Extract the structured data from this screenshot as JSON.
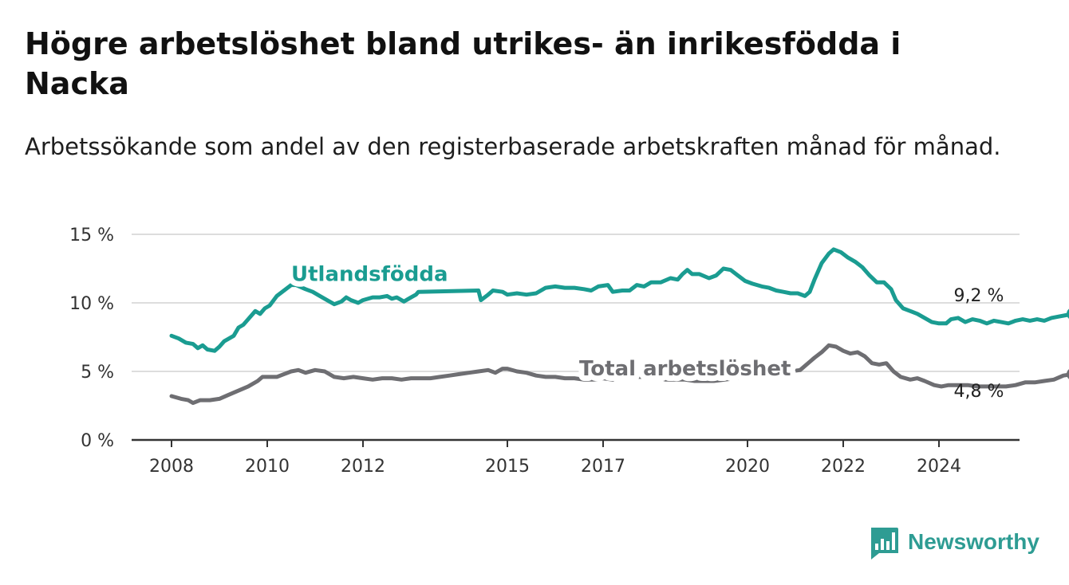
{
  "title": "Högre arbetslöshet bland utrikes- än inrikesfödda i Nacka",
  "subtitle": "Arbetssökande som andel av den registerbaserade arbetskraften månad för månad.",
  "brand": {
    "name": "Newsworthy",
    "icon": "bar-chart-badge-icon",
    "color": "#2e9c93"
  },
  "colors": {
    "foreign": "#1a9c91",
    "total": "#6e6e72",
    "grid": "#dddddd",
    "axis": "#333333"
  },
  "chart_data": {
    "type": "line",
    "title": "Högre arbetslöshet bland utrikes- än inrikesfödda i Nacka",
    "subtitle": "Arbetssökande som andel av den registerbaserade arbetskraften månad för månad.",
    "xlabel": "",
    "ylabel": "",
    "ylim": [
      0,
      15
    ],
    "y_ticks": [
      0,
      5,
      10,
      15
    ],
    "y_tick_labels": [
      "0 %",
      "5 %",
      "10 %",
      "15 %"
    ],
    "xlim": [
      2008,
      2025.7
    ],
    "x_ticks": [
      2008,
      2010,
      2012,
      2015,
      2017,
      2020,
      2022,
      2024
    ],
    "x_tick_labels": [
      "2008",
      "2010",
      "2012",
      "2015",
      "2017",
      "2020",
      "2022",
      "2024"
    ],
    "grid": true,
    "legend": "inline labels",
    "series": [
      {
        "name": "Utlandsfödda",
        "end_label": "9,2 %",
        "label_at": [
          2010.5,
          11.6
        ],
        "points": [
          [
            2008.0,
            7.6
          ],
          [
            2008.15,
            7.4
          ],
          [
            2008.3,
            7.1
          ],
          [
            2008.45,
            7.0
          ],
          [
            2008.55,
            6.7
          ],
          [
            2008.65,
            6.9
          ],
          [
            2008.75,
            6.6
          ],
          [
            2008.9,
            6.5
          ],
          [
            2009.0,
            6.8
          ],
          [
            2009.1,
            7.2
          ],
          [
            2009.3,
            7.6
          ],
          [
            2009.4,
            8.2
          ],
          [
            2009.5,
            8.4
          ],
          [
            2009.6,
            8.8
          ],
          [
            2009.75,
            9.4
          ],
          [
            2009.85,
            9.2
          ],
          [
            2009.95,
            9.6
          ],
          [
            2010.05,
            9.8
          ],
          [
            2010.2,
            10.5
          ],
          [
            2010.35,
            10.9
          ],
          [
            2010.5,
            11.3
          ],
          [
            2010.6,
            11.3
          ],
          [
            2010.8,
            11.0
          ],
          [
            2010.95,
            10.8
          ],
          [
            2011.1,
            10.5
          ],
          [
            2011.3,
            10.1
          ],
          [
            2011.4,
            9.9
          ],
          [
            2011.55,
            10.1
          ],
          [
            2011.65,
            10.4
          ],
          [
            2011.75,
            10.2
          ],
          [
            2011.9,
            10.0
          ],
          [
            2012.0,
            10.2
          ],
          [
            2012.2,
            10.4
          ],
          [
            2012.35,
            10.4
          ],
          [
            2012.5,
            10.5
          ],
          [
            2012.6,
            10.3
          ],
          [
            2012.7,
            10.4
          ],
          [
            2012.85,
            10.1
          ],
          [
            2013.0,
            10.4
          ],
          [
            2013.1,
            10.6
          ],
          [
            2013.15,
            10.8
          ],
          [
            2014.4,
            10.9
          ],
          [
            2014.45,
            10.2
          ],
          [
            2014.6,
            10.6
          ],
          [
            2014.7,
            10.9
          ],
          [
            2014.9,
            10.8
          ],
          [
            2015.0,
            10.6
          ],
          [
            2015.2,
            10.7
          ],
          [
            2015.4,
            10.6
          ],
          [
            2015.6,
            10.7
          ],
          [
            2015.8,
            11.1
          ],
          [
            2016.0,
            11.2
          ],
          [
            2016.2,
            11.1
          ],
          [
            2016.4,
            11.1
          ],
          [
            2016.6,
            11.0
          ],
          [
            2016.75,
            10.9
          ],
          [
            2016.9,
            11.2
          ],
          [
            2017.1,
            11.3
          ],
          [
            2017.2,
            10.8
          ],
          [
            2017.4,
            10.9
          ],
          [
            2017.55,
            10.9
          ],
          [
            2017.7,
            11.3
          ],
          [
            2017.85,
            11.2
          ],
          [
            2018.0,
            11.5
          ],
          [
            2018.2,
            11.5
          ],
          [
            2018.4,
            11.8
          ],
          [
            2018.55,
            11.7
          ],
          [
            2018.65,
            12.1
          ],
          [
            2018.75,
            12.4
          ],
          [
            2018.85,
            12.1
          ],
          [
            2019.0,
            12.1
          ],
          [
            2019.2,
            11.8
          ],
          [
            2019.35,
            12.0
          ],
          [
            2019.5,
            12.5
          ],
          [
            2019.65,
            12.4
          ],
          [
            2019.8,
            12.0
          ],
          [
            2019.95,
            11.6
          ],
          [
            2020.1,
            11.4
          ],
          [
            2020.3,
            11.2
          ],
          [
            2020.45,
            11.1
          ],
          [
            2020.6,
            10.9
          ],
          [
            2020.75,
            10.8
          ],
          [
            2020.9,
            10.7
          ],
          [
            2021.05,
            10.7
          ],
          [
            2021.2,
            10.5
          ],
          [
            2021.3,
            10.8
          ],
          [
            2021.4,
            11.7
          ],
          [
            2021.55,
            12.9
          ],
          [
            2021.7,
            13.6
          ],
          [
            2021.8,
            13.9
          ],
          [
            2021.95,
            13.7
          ],
          [
            2022.1,
            13.3
          ],
          [
            2022.25,
            13.0
          ],
          [
            2022.4,
            12.6
          ],
          [
            2022.55,
            12.0
          ],
          [
            2022.7,
            11.5
          ],
          [
            2022.85,
            11.5
          ],
          [
            2023.0,
            11.0
          ],
          [
            2023.1,
            10.2
          ],
          [
            2023.25,
            9.6
          ],
          [
            2023.4,
            9.4
          ],
          [
            2023.55,
            9.2
          ],
          [
            2023.7,
            8.9
          ],
          [
            2023.85,
            8.6
          ],
          [
            2024.0,
            8.5
          ],
          [
            2024.15,
            8.5
          ],
          [
            2024.25,
            8.8
          ],
          [
            2024.4,
            8.9
          ],
          [
            2024.55,
            8.6
          ],
          [
            2024.7,
            8.8
          ],
          [
            2024.85,
            8.7
          ],
          [
            2025.0,
            8.5
          ],
          [
            2025.15,
            8.7
          ],
          [
            2025.3,
            8.6
          ],
          [
            2025.45,
            8.5
          ],
          [
            2025.6,
            8.7
          ],
          [
            2025.75,
            8.8
          ],
          [
            2025.9,
            8.7
          ],
          [
            2026.05,
            8.8
          ],
          [
            2026.2,
            8.7
          ],
          [
            2026.35,
            8.9
          ],
          [
            2026.5,
            9.0
          ],
          [
            2026.65,
            9.1
          ],
          [
            2026.8,
            9.2
          ]
        ]
      },
      {
        "name": "Total arbetslöshet",
        "end_label": "4,8 %",
        "label_at": [
          2016.5,
          4.7
        ],
        "points": [
          [
            2008.0,
            3.2
          ],
          [
            2008.2,
            3.0
          ],
          [
            2008.35,
            2.9
          ],
          [
            2008.45,
            2.7
          ],
          [
            2008.6,
            2.9
          ],
          [
            2008.8,
            2.9
          ],
          [
            2009.0,
            3.0
          ],
          [
            2009.2,
            3.3
          ],
          [
            2009.4,
            3.6
          ],
          [
            2009.6,
            3.9
          ],
          [
            2009.8,
            4.3
          ],
          [
            2009.9,
            4.6
          ],
          [
            2010.0,
            4.6
          ],
          [
            2010.2,
            4.6
          ],
          [
            2010.35,
            4.8
          ],
          [
            2010.5,
            5.0
          ],
          [
            2010.65,
            5.1
          ],
          [
            2010.8,
            4.9
          ],
          [
            2011.0,
            5.1
          ],
          [
            2011.2,
            5.0
          ],
          [
            2011.4,
            4.6
          ],
          [
            2011.6,
            4.5
          ],
          [
            2011.8,
            4.6
          ],
          [
            2012.0,
            4.5
          ],
          [
            2012.2,
            4.4
          ],
          [
            2012.4,
            4.5
          ],
          [
            2012.6,
            4.5
          ],
          [
            2012.8,
            4.4
          ],
          [
            2013.0,
            4.5
          ],
          [
            2013.2,
            4.5
          ],
          [
            2013.4,
            4.5
          ],
          [
            2013.6,
            4.6
          ],
          [
            2013.8,
            4.7
          ],
          [
            2014.0,
            4.8
          ],
          [
            2014.2,
            4.9
          ],
          [
            2014.4,
            5.0
          ],
          [
            2014.6,
            5.1
          ],
          [
            2014.75,
            4.9
          ],
          [
            2014.9,
            5.2
          ],
          [
            2015.0,
            5.2
          ],
          [
            2015.2,
            5.0
          ],
          [
            2015.4,
            4.9
          ],
          [
            2015.6,
            4.7
          ],
          [
            2015.8,
            4.6
          ],
          [
            2016.0,
            4.6
          ],
          [
            2016.2,
            4.5
          ],
          [
            2016.4,
            4.5
          ],
          [
            2016.6,
            4.4
          ],
          [
            2016.8,
            4.4
          ],
          [
            2017.0,
            4.5
          ],
          [
            2017.2,
            4.4
          ],
          [
            2017.3,
            4.7
          ],
          [
            2017.5,
            4.7
          ],
          [
            2017.7,
            4.6
          ],
          [
            2017.9,
            4.6
          ],
          [
            2018.1,
            4.6
          ],
          [
            2018.3,
            4.4
          ],
          [
            2018.5,
            4.4
          ],
          [
            2018.7,
            4.4
          ],
          [
            2018.9,
            4.3
          ],
          [
            2019.1,
            4.3
          ],
          [
            2019.3,
            4.3
          ],
          [
            2021.1,
            5.1
          ],
          [
            2021.4,
            6.0
          ],
          [
            2021.55,
            6.4
          ],
          [
            2021.7,
            6.9
          ],
          [
            2021.85,
            6.8
          ],
          [
            2022.0,
            6.5
          ],
          [
            2022.15,
            6.3
          ],
          [
            2022.3,
            6.4
          ],
          [
            2022.45,
            6.1
          ],
          [
            2022.6,
            5.6
          ],
          [
            2022.75,
            5.5
          ],
          [
            2022.9,
            5.6
          ],
          [
            2023.05,
            5.0
          ],
          [
            2023.2,
            4.6
          ],
          [
            2023.4,
            4.4
          ],
          [
            2023.55,
            4.5
          ],
          [
            2023.7,
            4.3
          ],
          [
            2023.9,
            4.0
          ],
          [
            2024.05,
            3.9
          ],
          [
            2024.2,
            4.0
          ],
          [
            2024.4,
            4.0
          ],
          [
            2024.6,
            4.0
          ],
          [
            2024.8,
            3.9
          ],
          [
            2025.0,
            3.9
          ],
          [
            2025.2,
            3.9
          ],
          [
            2025.4,
            3.9
          ],
          [
            2025.6,
            4.0
          ],
          [
            2025.8,
            4.2
          ],
          [
            2026.0,
            4.2
          ],
          [
            2026.2,
            4.3
          ],
          [
            2026.4,
            4.4
          ],
          [
            2026.6,
            4.7
          ],
          [
            2026.8,
            4.8
          ]
        ]
      }
    ]
  }
}
